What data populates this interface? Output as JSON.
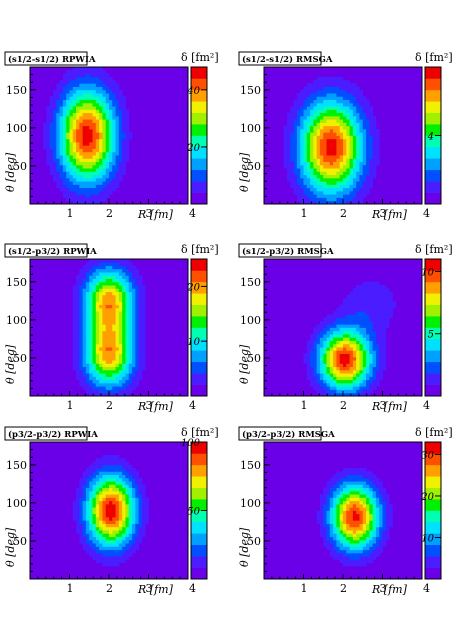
{
  "colors": {
    "scale": [
      "#6a00e8",
      "#4a1cff",
      "#0050ff",
      "#00a0ff",
      "#00e0ff",
      "#00ffb0",
      "#00f000",
      "#a0f000",
      "#f0f000",
      "#ffa000",
      "#ff5000",
      "#ee0000"
    ],
    "frame": "#000000",
    "background": "#ffffff"
  },
  "chart_data": [
    {
      "type": "heatmap",
      "title": "(s1/2-s1/2) RPWIA",
      "colorbar_label": "δ [fm²]",
      "xlabel": "R [fm]",
      "ylabel": "θ [deg]",
      "xlim": [
        0,
        4
      ],
      "ylim": [
        0,
        180
      ],
      "x_ticks": [
        "1",
        "2",
        "3",
        "4"
      ],
      "y_ticks": [
        "50",
        "100",
        "150"
      ],
      "z_range": [
        0,
        48
      ],
      "z_ticks": [
        "20",
        "40"
      ],
      "peaks": [
        {
          "r": 1.45,
          "theta": 90,
          "value": 46,
          "sr": 0.7,
          "st": 60
        }
      ]
    },
    {
      "type": "heatmap",
      "title": "(s1/2-s1/2) RMSGA",
      "colorbar_label": "δ [fm²]",
      "xlabel": "R [fm]",
      "ylabel": "θ [deg]",
      "xlim": [
        0,
        4
      ],
      "ylim": [
        0,
        180
      ],
      "x_ticks": [
        "1",
        "2",
        "3",
        "4"
      ],
      "y_ticks": [
        "50",
        "100",
        "150"
      ],
      "z_range": [
        0,
        8
      ],
      "z_ticks": [
        "4"
      ],
      "peaks": [
        {
          "r": 1.7,
          "theta": 75,
          "value": 7.6,
          "sr": 0.78,
          "st": 60
        }
      ]
    },
    {
      "type": "heatmap",
      "title": "(s1/2-p3/2) RPWIA",
      "colorbar_label": "δ [fm²]",
      "xlabel": "R [fm]",
      "ylabel": "θ [deg]",
      "xlim": [
        0,
        4
      ],
      "ylim": [
        0,
        180
      ],
      "x_ticks": [
        "1",
        "2",
        "3",
        "4"
      ],
      "y_ticks": [
        "50",
        "100",
        "150"
      ],
      "z_range": [
        0,
        25
      ],
      "z_ticks": [
        "10",
        "20"
      ],
      "peaks": [
        {
          "r": 2.0,
          "theta": 55,
          "value": 19.5,
          "sr": 0.62,
          "st": 42
        },
        {
          "r": 2.0,
          "theta": 125,
          "value": 19.5,
          "sr": 0.62,
          "st": 42
        }
      ]
    },
    {
      "type": "heatmap",
      "title": "(s1/2-p3/2) RMSGA",
      "colorbar_label": "δ [fm²]",
      "xlabel": "R [fm]",
      "ylabel": "θ [deg]",
      "xlim": [
        0,
        4
      ],
      "ylim": [
        0,
        180
      ],
      "x_ticks": [
        "1",
        "2",
        "3",
        "4"
      ],
      "y_ticks": [
        "50",
        "100",
        "150"
      ],
      "z_range": [
        0,
        11
      ],
      "z_ticks": [
        "5",
        "10"
      ],
      "peaks": [
        {
          "r": 2.05,
          "theta": 48,
          "value": 10.5,
          "sr": 0.65,
          "st": 38
        },
        {
          "r": 2.7,
          "theta": 120,
          "value": 1.6,
          "sr": 0.8,
          "st": 40
        }
      ]
    },
    {
      "type": "heatmap",
      "title": "(p3/2-p3/2) RPWIA",
      "colorbar_label": "δ [fm²]",
      "xlabel": "R [fm]",
      "ylabel": "θ [deg]",
      "xlim": [
        0,
        4
      ],
      "ylim": [
        0,
        180
      ],
      "x_ticks": [
        "1",
        "2",
        "3",
        "4"
      ],
      "y_ticks": [
        "50",
        "100",
        "150"
      ],
      "z_range": [
        0,
        100
      ],
      "z_ticks": [
        "50",
        "100"
      ],
      "peaks": [
        {
          "r": 2.05,
          "theta": 90,
          "value": 97,
          "sr": 0.6,
          "st": 46
        }
      ]
    },
    {
      "type": "heatmap",
      "title": "(p3/2-p3/2) RMSGA",
      "colorbar_label": "δ [fm²]",
      "xlabel": "R [fm]",
      "ylabel": "θ [deg]",
      "xlim": [
        0,
        4
      ],
      "ylim": [
        0,
        180
      ],
      "x_ticks": [
        "1",
        "2",
        "3",
        "4"
      ],
      "y_ticks": [
        "50",
        "100",
        "150"
      ],
      "z_range": [
        0,
        33
      ],
      "z_ticks": [
        "10",
        "20",
        "30"
      ],
      "peaks": [
        {
          "r": 2.3,
          "theta": 82,
          "value": 31,
          "sr": 0.6,
          "st": 42
        }
      ]
    }
  ]
}
